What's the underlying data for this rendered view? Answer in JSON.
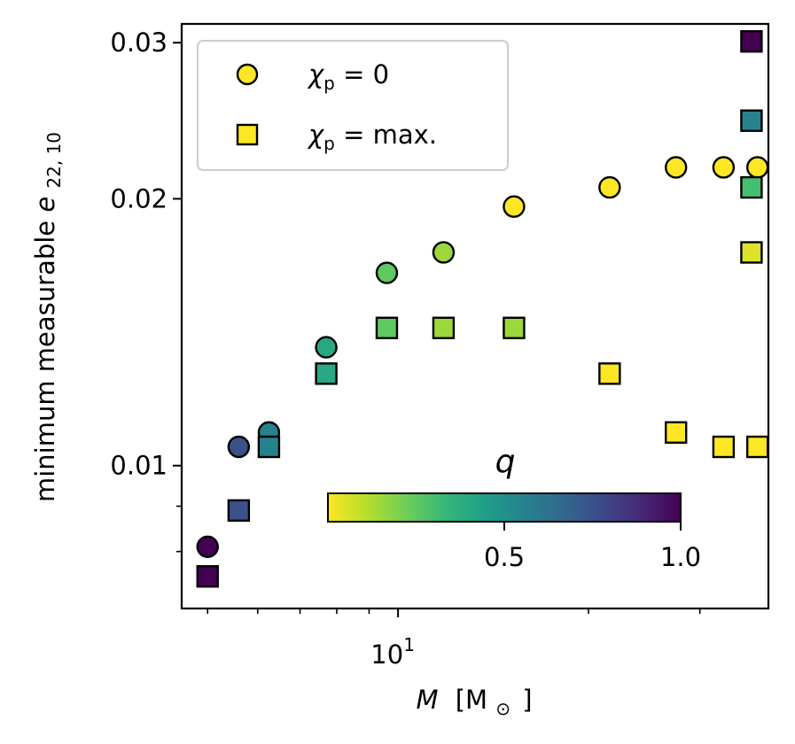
{
  "chart_data": {
    "type": "scatter",
    "xscale": "log",
    "yscale": "log",
    "xlabel_italic": "M",
    "xlabel_unit": "[M",
    "xlabel_sub": "⊙",
    "xlabel_close": "]",
    "ylabel_text": "minimum measurable ",
    "ylabel_var": "e",
    "ylabel_sub": "22, 10",
    "xlim": [
      4.55,
      38.5
    ],
    "ylim": [
      0.0069,
      0.0315
    ],
    "x_major_ticks": [
      {
        "value": 10,
        "base": "10",
        "exp": "1"
      }
    ],
    "x_minor_ticks": [
      5,
      6,
      7,
      8,
      9,
      20,
      30
    ],
    "y_ticks": [
      {
        "value": 0.01,
        "label": "0.01"
      },
      {
        "value": 0.02,
        "label": "0.02"
      },
      {
        "value": 0.03,
        "label": "0.03"
      }
    ],
    "y_minor_ticks": [
      0.008,
      0.009
    ],
    "legend": {
      "position": "upper left",
      "entries": [
        {
          "marker": "circle",
          "sym": "χ",
          "sub": "p",
          "text": " = 0"
        },
        {
          "marker": "square",
          "sym": "χ",
          "sub": "p",
          "text": " =  max."
        }
      ]
    },
    "colorbar": {
      "label": "q",
      "orientation": "horizontal",
      "range": [
        0.0,
        1.0
      ],
      "ticks": [
        {
          "value": 0.5,
          "label": "0.5"
        },
        {
          "value": 1.0,
          "label": "1.0"
        }
      ],
      "colormap": "viridis_r",
      "colormap_stops": [
        "#fde725",
        "#b5de2b",
        "#6ece58",
        "#35b779",
        "#1f9e89",
        "#26828e",
        "#31688e",
        "#3e4989",
        "#482878",
        "#440154"
      ]
    },
    "series": [
      {
        "name": "χp = 0",
        "marker": "circle",
        "points": [
          {
            "x": 5.0,
            "y": 0.0081,
            "q": 1.0
          },
          {
            "x": 5.6,
            "y": 0.0105,
            "q": 0.75
          },
          {
            "x": 6.25,
            "y": 0.0109,
            "q": 0.55
          },
          {
            "x": 7.7,
            "y": 0.0136,
            "q": 0.4
          },
          {
            "x": 9.6,
            "y": 0.0165,
            "q": 0.25
          },
          {
            "x": 11.8,
            "y": 0.0174,
            "q": 0.15
          },
          {
            "x": 15.25,
            "y": 0.0196,
            "q": 0.0
          },
          {
            "x": 21.6,
            "y": 0.0206,
            "q": 0.0
          },
          {
            "x": 27.5,
            "y": 0.0217,
            "q": 0.0
          },
          {
            "x": 32.7,
            "y": 0.0217,
            "q": 0.0
          },
          {
            "x": 37.0,
            "y": 0.0217,
            "q": 0.0
          }
        ]
      },
      {
        "name": "χp = max.",
        "marker": "square",
        "points": [
          {
            "x": 5.0,
            "y": 0.0075,
            "q": 1.0
          },
          {
            "x": 5.6,
            "y": 0.0089,
            "q": 0.75
          },
          {
            "x": 6.25,
            "y": 0.0105,
            "q": 0.55
          },
          {
            "x": 7.7,
            "y": 0.0127,
            "q": 0.4
          },
          {
            "x": 9.6,
            "y": 0.0143,
            "q": 0.25
          },
          {
            "x": 11.8,
            "y": 0.0143,
            "q": 0.15
          },
          {
            "x": 15.25,
            "y": 0.0143,
            "q": 0.15
          },
          {
            "x": 21.6,
            "y": 0.0127,
            "q": 0.0
          },
          {
            "x": 27.5,
            "y": 0.0109,
            "q": 0.0
          },
          {
            "x": 32.7,
            "y": 0.0105,
            "q": 0.0
          },
          {
            "x": 37.0,
            "y": 0.0105,
            "q": 0.0
          },
          {
            "x": 36.2,
            "y": 0.0174,
            "q": 0.05
          },
          {
            "x": 36.2,
            "y": 0.0206,
            "q": 0.3
          },
          {
            "x": 36.2,
            "y": 0.0245,
            "q": 0.55
          },
          {
            "x": 36.2,
            "y": 0.0301,
            "q": 1.0
          }
        ]
      }
    ]
  }
}
